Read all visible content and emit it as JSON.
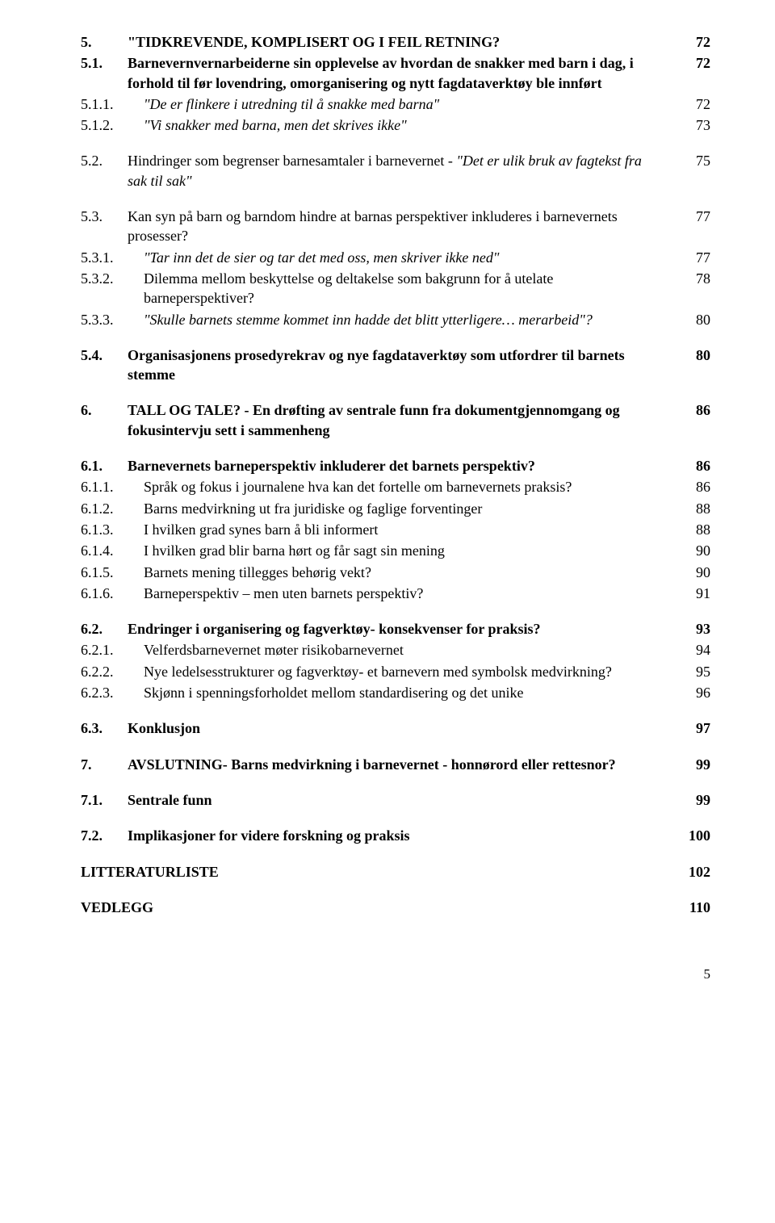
{
  "fontsize_body": 18,
  "text_color": "#000000",
  "background_color": "#ffffff",
  "entries": [
    {
      "num": "5.",
      "text": "\"TIDKREVENDE, KOMPLISERT OG I FEIL RETNING?",
      "page": "72",
      "bold": true,
      "gap": false
    },
    {
      "num": "5.1.",
      "text": "Barnevernvernarbeiderne sin opplevelse av hvordan de snakker med barn i dag, i forhold til før lovendring, omorganisering og nytt fagdataverktøy ble innført",
      "page": "72",
      "bold": true,
      "gap": false
    },
    {
      "num": "5.1.1.",
      "text": "\"De er flinkere i utredning til å snakke med barna\"",
      "page": "72",
      "italic": true,
      "numw": "w2"
    },
    {
      "num": "5.1.2.",
      "text": "\"Vi snakker med barna, men det skrives ikke\"",
      "page": "73",
      "italic": true,
      "numw": "w2"
    },
    {
      "num": "5.2.",
      "text": "Hindringer som begrenser barnesamtaler i barnevernet - \"Det er ulik bruk av fagtekst fra sak til sak\"",
      "page": "75",
      "gap": true,
      "mixed": true,
      "mix_pre": "Hindringer som begrenser barnesamtaler i barnevernet - ",
      "mix_it": "\"Det er ulik bruk av fagtekst fra sak til sak\""
    },
    {
      "num": "5.3.",
      "text": "Kan syn på barn og barndom hindre at barnas perspektiver inkluderes i barnevernets prosesser?",
      "page": "77",
      "gap": true
    },
    {
      "num": "5.3.1.",
      "text": "\"Tar inn det de sier og tar det med oss, men skriver ikke ned\"",
      "page": "77",
      "italic": true,
      "numw": "w2"
    },
    {
      "num": "5.3.2.",
      "text": "Dilemma mellom beskyttelse og deltakelse som bakgrunn for å utelate barneperspektiver?",
      "page": "78",
      "numw": "w2"
    },
    {
      "num": "5.3.3.",
      "text": "\"Skulle barnets stemme kommet inn hadde det blitt ytterligere… merarbeid\"?",
      "page": "80",
      "italic": true,
      "numw": "w2"
    },
    {
      "num": "5.4.",
      "text": "Organisasjonens prosedyrekrav og nye fagdataverktøy som utfordrer til barnets stemme",
      "page": "80",
      "bold": true,
      "gap": true
    },
    {
      "num": "6.",
      "text": "TALL OG TALE? - En drøfting av sentrale funn fra dokumentgjennomgang og fokusintervju sett i sammenheng",
      "page": "86",
      "bold": true,
      "gap": true
    },
    {
      "num": "6.1.",
      "text": "Barnevernets barneperspektiv inkluderer det barnets perspektiv?",
      "page": "86",
      "bold": true,
      "gap": true
    },
    {
      "num": "6.1.1.",
      "text": "Språk og fokus i journalene hva kan det fortelle om barnevernets praksis?",
      "page": "86",
      "numw": "w2"
    },
    {
      "num": "6.1.2.",
      "text": "Barns medvirkning ut fra juridiske og faglige forventinger",
      "page": "88",
      "numw": "w2"
    },
    {
      "num": "6.1.3.",
      "text": "I hvilken grad synes barn å bli informert",
      "page": "88",
      "numw": "w2"
    },
    {
      "num": "6.1.4.",
      "text": "I hvilken grad blir barna hørt og får sagt sin mening",
      "page": "90",
      "numw": "w2"
    },
    {
      "num": "6.1.5.",
      "text": "Barnets mening tillegges behørig vekt?",
      "page": "90",
      "numw": "w2"
    },
    {
      "num": "6.1.6.",
      "text": "Barneperspektiv – men uten barnets perspektiv?",
      "page": "91",
      "numw": "w2"
    },
    {
      "num": "6.2.",
      "text": "Endringer i organisering og fagverktøy- konsekvenser for praksis?",
      "page": "93",
      "bold": true,
      "gap": true
    },
    {
      "num": "6.2.1.",
      "text": "Velferdsbarnevernet møter risikobarnevernet",
      "page": "94",
      "numw": "w2"
    },
    {
      "num": "6.2.2.",
      "text": "Nye ledelsesstrukturer og fagverktøy- et barnevern med symbolsk medvirkning?",
      "page": "95",
      "numw": "w2"
    },
    {
      "num": "6.2.3.",
      "text": "Skjønn i spenningsforholdet mellom standardisering og det unike",
      "page": "96",
      "numw": "w2"
    },
    {
      "num": "6.3.",
      "text": "Konklusjon",
      "page": "97",
      "bold": true,
      "gap": true
    },
    {
      "num": "7.",
      "text": "AVSLUTNING- Barns medvirkning i barnevernet - honnørord eller rettesnor?",
      "page": "99",
      "bold": true,
      "gap": true
    },
    {
      "num": "7.1.",
      "text": "Sentrale funn",
      "page": "99",
      "bold": true,
      "gap": true
    },
    {
      "num": "7.2.",
      "text": "Implikasjoner for videre forskning og praksis",
      "page": "100",
      "bold": true,
      "gap": true
    },
    {
      "num": "",
      "text": "LITTERATURLISTE",
      "page": "102",
      "bold": true,
      "gap": true,
      "nonum": true
    },
    {
      "num": "",
      "text": "VEDLEGG",
      "page": "110",
      "bold": true,
      "gap": true,
      "nonum": true
    }
  ],
  "page_number": "5"
}
